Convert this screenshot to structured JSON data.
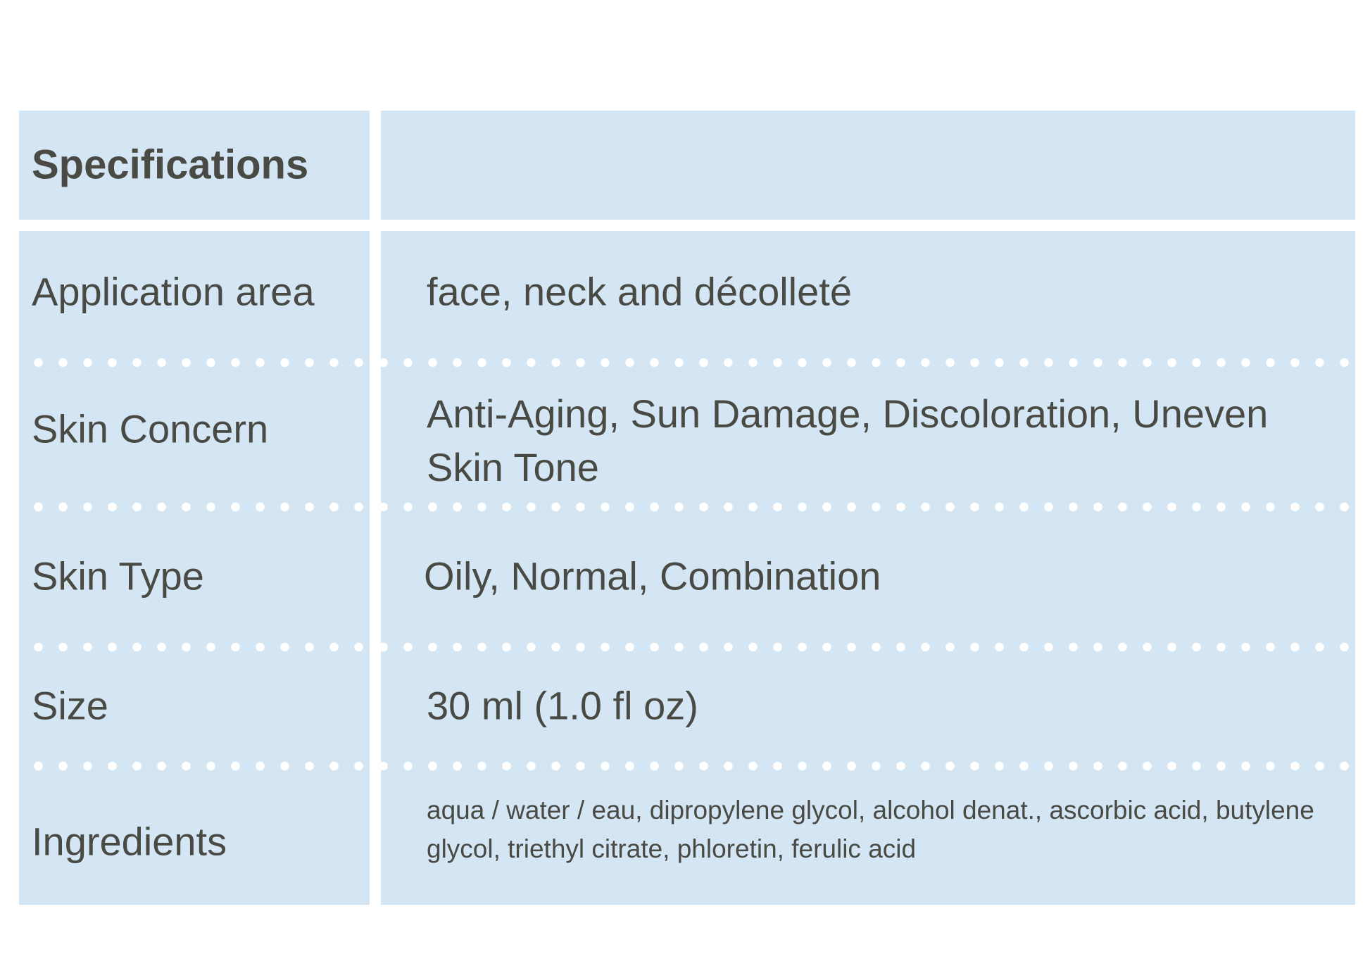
{
  "header": {
    "title": "Specifications",
    "value": ""
  },
  "rows": [
    {
      "label": "Application area",
      "value": "face, neck and décolleté"
    },
    {
      "label": "Skin Concern",
      "value": "Anti-Aging, Sun Damage, Discoloration, Uneven Skin Tone"
    },
    {
      "label": "Skin Type",
      "value": "Oily, Normal, Combination"
    },
    {
      "label": "Size",
      "value": "30 ml (1.0 fl oz)"
    },
    {
      "label": "Ingredients",
      "value": "aqua / water / eau, dipropylene glycol, alcohol denat., ascorbic acid, butylene glycol, triethyl citrate, phloretin, ferulic acid"
    }
  ],
  "colors": {
    "cell_background": "#d4e6f3",
    "text": "#4a4a45",
    "divider_dots": "#ffffff"
  }
}
